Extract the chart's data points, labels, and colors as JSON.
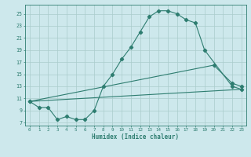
{
  "line1_x": [
    0,
    1,
    2,
    3,
    4,
    5,
    6,
    7,
    8,
    9,
    10,
    11,
    12,
    13,
    14,
    15,
    16,
    17,
    18,
    19,
    22,
    23
  ],
  "line1_y": [
    10.5,
    9.5,
    9.5,
    7.5,
    8.0,
    7.5,
    7.5,
    9.0,
    13.0,
    15.0,
    17.5,
    19.5,
    22.0,
    24.5,
    25.5,
    25.5,
    25.0,
    24.0,
    23.5,
    19.0,
    13.0,
    12.5
  ],
  "line2_x": [
    0,
    20,
    22,
    23
  ],
  "line2_y": [
    10.5,
    16.5,
    13.5,
    13.0
  ],
  "line3_x": [
    0,
    23
  ],
  "line3_y": [
    10.5,
    12.5
  ],
  "color": "#2e7d70",
  "bg_color": "#cde8ec",
  "grid_color": "#aacccc",
  "xlabel": "Humidex (Indice chaleur)",
  "xlim": [
    -0.5,
    23.5
  ],
  "ylim": [
    6.5,
    26.5
  ],
  "yticks": [
    7,
    9,
    11,
    13,
    15,
    17,
    19,
    21,
    23,
    25
  ],
  "xticks": [
    0,
    1,
    2,
    3,
    4,
    5,
    6,
    7,
    8,
    9,
    10,
    11,
    12,
    13,
    14,
    15,
    16,
    17,
    18,
    19,
    20,
    21,
    22,
    23
  ]
}
